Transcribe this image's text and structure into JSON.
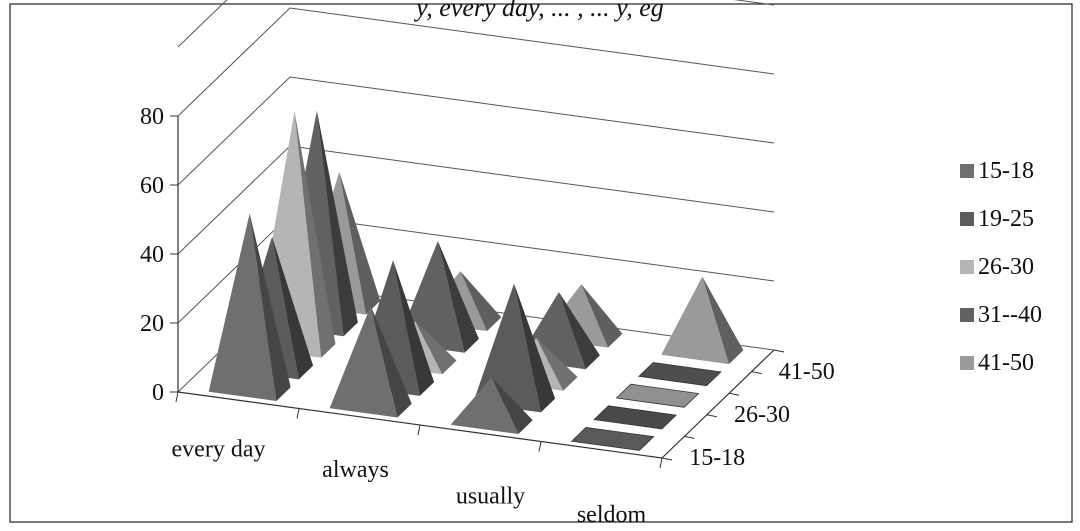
{
  "header_fragment": "y, every day, ... , ... y, eg",
  "chart_data": {
    "type": "bar",
    "style": "3d-pyramid",
    "categories": [
      "every day",
      "always",
      "usually",
      "seldom"
    ],
    "depth_labels": [
      "15-18",
      "26-30",
      "41-50"
    ],
    "yticks": [
      "0",
      "20",
      "40",
      "60",
      "80"
    ],
    "ylim": [
      0,
      80
    ],
    "grid": true,
    "legend_position": "right",
    "series": [
      {
        "name": "15-18",
        "values": [
          51,
          29,
          13,
          1
        ],
        "color": "#6f6f6f"
      },
      {
        "name": "19-25",
        "values": [
          38,
          36,
          34,
          1
        ],
        "color": "#5b5b5b"
      },
      {
        "name": "26-30",
        "values": [
          68,
          12,
          12,
          1
        ],
        "color": "#b5b5b5"
      },
      {
        "name": "31--40",
        "values": [
          62,
          29,
          19,
          1
        ],
        "color": "#616161"
      },
      {
        "name": "41-50",
        "values": [
          38,
          14,
          15,
          22
        ],
        "color": "#9a9a9a"
      }
    ]
  }
}
